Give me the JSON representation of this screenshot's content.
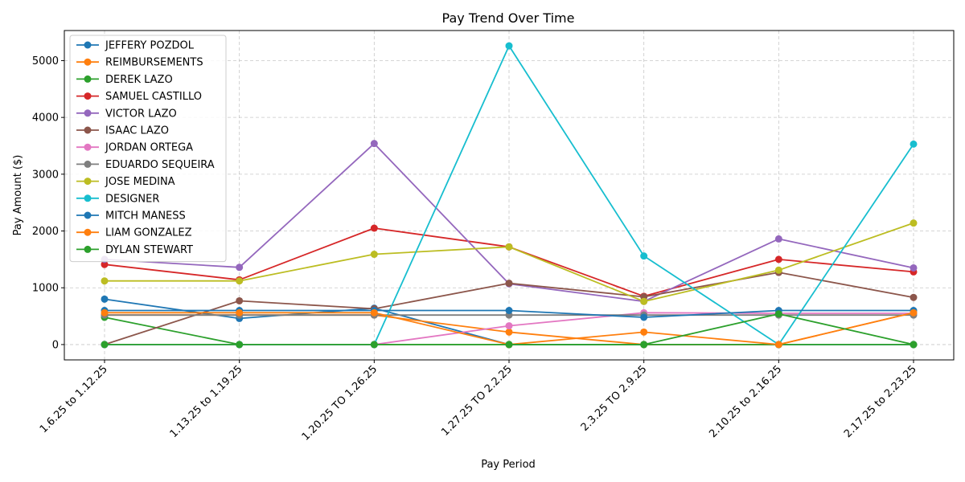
{
  "chart_data": {
    "type": "line",
    "title": "Pay Trend Over Time",
    "xlabel": "Pay Period",
    "ylabel": "Pay Amount ($)",
    "categories": [
      "1.6.25 to 1.12.25",
      "1.13.25 to 1.19.25",
      "1.20.25 TO  1.26.25",
      "1.27.25 TO 2.2.25",
      "2.3.25 TO 2.9.25",
      "2.10.25 to  2.16.25",
      "2.17.25 to 2.23.25"
    ],
    "ylim": [
      -270,
      5530
    ],
    "yticks": [
      0,
      1000,
      2000,
      3000,
      4000,
      5000
    ],
    "grid": true,
    "legend_position": "upper-left",
    "series": [
      {
        "name": "JEFFERY POZDOL",
        "color": "#1f77b4",
        "values": [
          800,
          460,
          640,
          0,
          0,
          0,
          0
        ]
      },
      {
        "name": "REIMBURSEMENTS",
        "color": "#ff7f0e",
        "values": [
          520,
          520,
          520,
          220,
          0,
          0,
          560
        ]
      },
      {
        "name": "DEREK LAZO",
        "color": "#2ca02c",
        "values": [
          480,
          0,
          0,
          0,
          0,
          0,
          0
        ]
      },
      {
        "name": "SAMUEL CASTILLO",
        "color": "#d62728",
        "values": [
          1410,
          1140,
          2050,
          1720,
          850,
          1500,
          1280
        ]
      },
      {
        "name": "VICTOR LAZO",
        "color": "#9467bd",
        "values": [
          1500,
          1360,
          3540,
          1070,
          760,
          1860,
          1350
        ]
      },
      {
        "name": "ISAAC LAZO",
        "color": "#8c564b",
        "values": [
          0,
          770,
          630,
          1080,
          840,
          1270,
          830
        ]
      },
      {
        "name": "JORDAN ORTEGA",
        "color": "#e377c2",
        "values": [
          0,
          0,
          0,
          330,
          560,
          550,
          550
        ]
      },
      {
        "name": "EDUARDO SEQUEIRA",
        "color": "#7f7f7f",
        "values": [
          520,
          520,
          520,
          520,
          520,
          520,
          520
        ]
      },
      {
        "name": "JOSE MEDINA",
        "color": "#bcbd22",
        "values": [
          1120,
          1120,
          1590,
          1720,
          760,
          1310,
          2140
        ]
      },
      {
        "name": "DESIGNER",
        "color": "#17becf",
        "values": [
          0,
          0,
          0,
          5260,
          1560,
          0,
          3530
        ]
      },
      {
        "name": "MITCH MANESS",
        "color": "#1f77b4",
        "values": [
          600,
          600,
          600,
          600,
          480,
          600,
          600
        ]
      },
      {
        "name": "LIAM GONZALEZ",
        "color": "#ff7f0e",
        "values": [
          560,
          560,
          560,
          0,
          220,
          0,
          560
        ]
      },
      {
        "name": "DYLAN STEWART",
        "color": "#2ca02c",
        "values": [
          0,
          0,
          0,
          0,
          0,
          540,
          0
        ]
      }
    ]
  }
}
